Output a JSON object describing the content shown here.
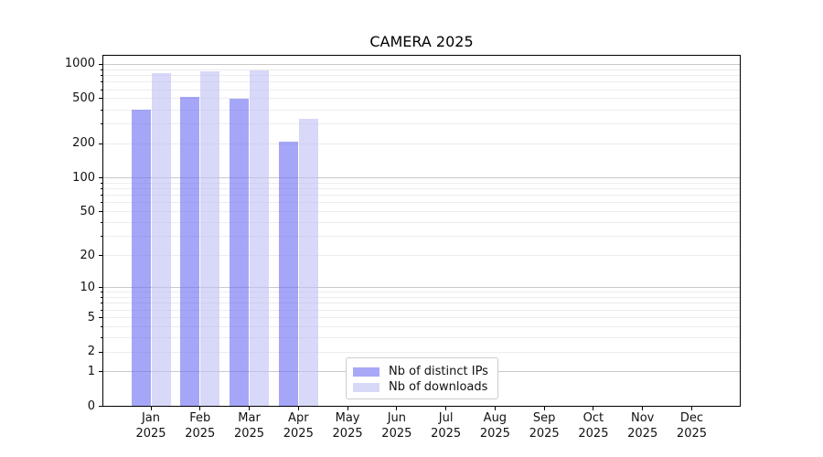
{
  "chart_data": {
    "type": "bar",
    "title": "CAMERA 2025",
    "yscale": "log (symlog-like, linear below 1)",
    "grid": true,
    "legend_position": "lower center",
    "ylim": [
      0,
      1200
    ],
    "y_ticks": [
      0,
      1,
      2,
      5,
      10,
      20,
      50,
      100,
      200,
      500,
      1000
    ],
    "categories": [
      "Jan",
      "Feb",
      "Mar",
      "Apr",
      "May",
      "Jun",
      "Jul",
      "Aug",
      "Sep",
      "Oct",
      "Nov",
      "Dec"
    ],
    "category_year": "2025",
    "series": [
      {
        "name": "Nb of distinct IPs",
        "color": "#a8a8f7",
        "fill": "rgba(112,112,243,0.62)",
        "values": [
          400,
          515,
          497,
          210,
          null,
          null,
          null,
          null,
          null,
          null,
          null,
          null
        ]
      },
      {
        "name": "Nb of downloads",
        "color": "#d8d8f9",
        "fill": "rgba(192,192,246,0.62)",
        "values": [
          845,
          870,
          885,
          330,
          null,
          null,
          null,
          null,
          null,
          null,
          null,
          null
        ]
      }
    ]
  }
}
